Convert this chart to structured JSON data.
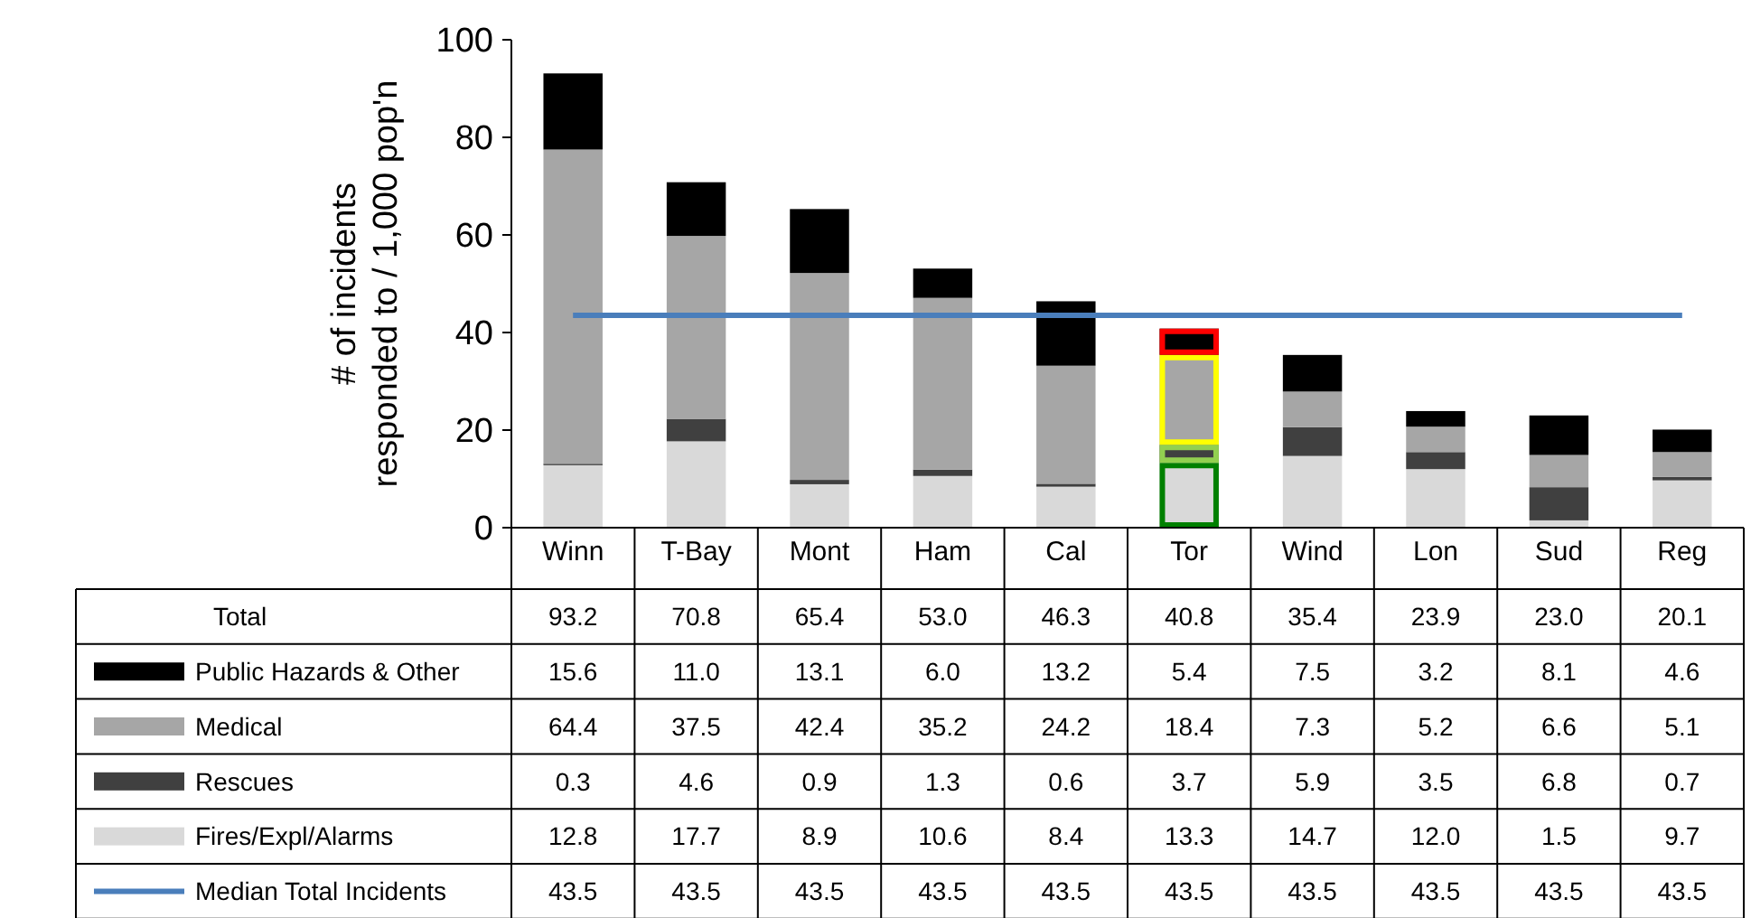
{
  "chart_data": {
    "type": "bar",
    "stacked": true,
    "ylabel": "# of incidents\nresponded to / 1,000 pop'n",
    "categories": [
      "Winn",
      "T-Bay",
      "Mont",
      "Ham",
      "Cal",
      "Tor",
      "Wind",
      "Lon",
      "Sud",
      "Reg"
    ],
    "ylim": [
      0,
      100
    ],
    "yticks": [
      0,
      20,
      40,
      60,
      80,
      100
    ],
    "legend": "bottom",
    "annotations": [
      "Total"
    ],
    "totals": [
      "93.2",
      "70.8",
      "65.4",
      "53.0",
      "46.3",
      "40.8",
      "35.4",
      "23.9",
      "23.0",
      "20.1"
    ],
    "series": [
      {
        "name": "Fires/Expl/Alarms",
        "color": "#d9d9d9",
        "values": [
          12.8,
          17.7,
          8.9,
          10.6,
          8.4,
          13.3,
          14.7,
          12.0,
          1.5,
          9.7
        ],
        "value_labels": [
          "12.8",
          "17.7",
          "8.9",
          "10.6",
          "8.4",
          "13.3",
          "14.7",
          "12.0",
          "1.5",
          "9.7"
        ]
      },
      {
        "name": "Rescues",
        "color": "#404040",
        "values": [
          0.3,
          4.6,
          0.9,
          1.3,
          0.6,
          3.7,
          5.9,
          3.5,
          6.8,
          0.7
        ],
        "value_labels": [
          "0.3",
          "4.6",
          "0.9",
          "1.3",
          "0.6",
          "3.7",
          "5.9",
          "3.5",
          "6.8",
          "0.7"
        ]
      },
      {
        "name": "Medical",
        "color": "#a6a6a6",
        "values": [
          64.4,
          37.5,
          42.4,
          35.2,
          24.2,
          18.4,
          7.3,
          5.2,
          6.6,
          5.1
        ],
        "value_labels": [
          "64.4",
          "37.5",
          "42.4",
          "35.2",
          "24.2",
          "18.4",
          "7.3",
          "5.2",
          "6.6",
          "5.1"
        ]
      },
      {
        "name": "Public Hazards & Other",
        "color": "#000000",
        "values": [
          15.6,
          11.0,
          13.1,
          6.0,
          13.2,
          5.4,
          7.5,
          3.2,
          8.1,
          4.6
        ],
        "value_labels": [
          "15.6",
          "11.0",
          "13.1",
          "6.0",
          "13.2",
          "5.4",
          "7.5",
          "3.2",
          "8.1",
          "4.6"
        ]
      },
      {
        "name": "Median Total Incidents",
        "type": "line",
        "color": "#4a7ebb",
        "values": [
          43.5,
          43.5,
          43.5,
          43.5,
          43.5,
          43.5,
          43.5,
          43.5,
          43.5,
          43.5
        ],
        "value_labels": [
          "43.5",
          "43.5",
          "43.5",
          "43.5",
          "43.5",
          "43.5",
          "43.5",
          "43.5",
          "43.5",
          "43.5"
        ]
      }
    ]
  }
}
